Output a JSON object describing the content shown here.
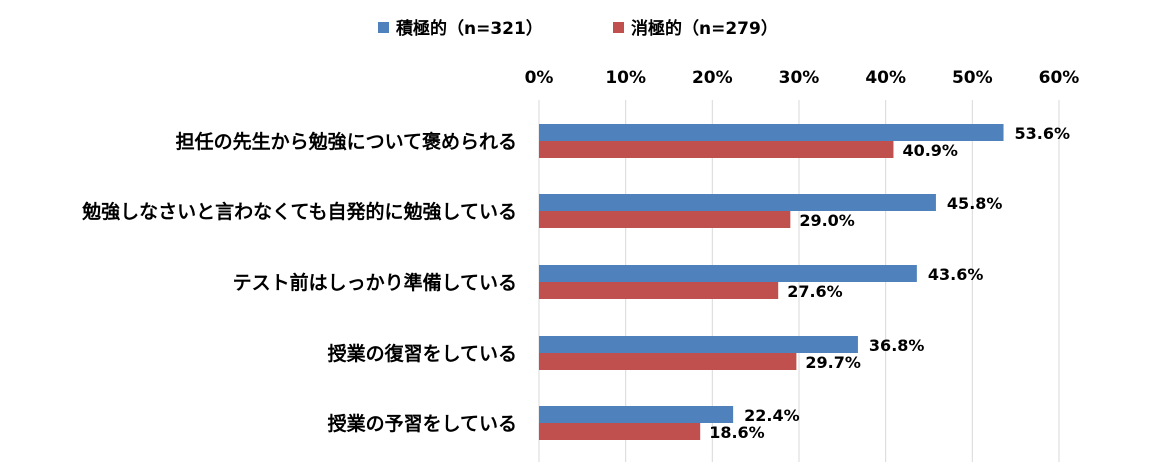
{
  "chart_data": {
    "type": "bar",
    "orientation": "horizontal",
    "categories": [
      "担任の先生から勉強について褒められる",
      "勉強しなさいと言わなくても自発的に勉強している",
      "テスト前はしっかり準備している",
      "授業の復習をしている",
      "授業の予習をしている"
    ],
    "series": [
      {
        "name": "積極的（n=321）",
        "color": "#4f81bd",
        "values": [
          53.6,
          45.8,
          43.6,
          36.8,
          22.4
        ]
      },
      {
        "name": "消極的（n=279）",
        "color": "#c0504d",
        "values": [
          40.9,
          29.0,
          27.6,
          29.7,
          18.6
        ]
      }
    ],
    "data_labels": [
      [
        "53.6%",
        "45.8%",
        "43.6%",
        "36.8%",
        "22.4%"
      ],
      [
        "40.9%",
        "29.0%",
        "27.6%",
        "29.7%",
        "18.6%"
      ]
    ],
    "xlim": [
      0,
      60
    ],
    "x_ticks": [
      0,
      10,
      20,
      30,
      40,
      50,
      60
    ],
    "x_tick_labels": [
      "0%",
      "10%",
      "20%",
      "30%",
      "40%",
      "50%",
      "60%"
    ],
    "x_axis_position": "top",
    "grid": true,
    "legend": "top-center",
    "title": "",
    "xlabel": "",
    "ylabel": ""
  }
}
